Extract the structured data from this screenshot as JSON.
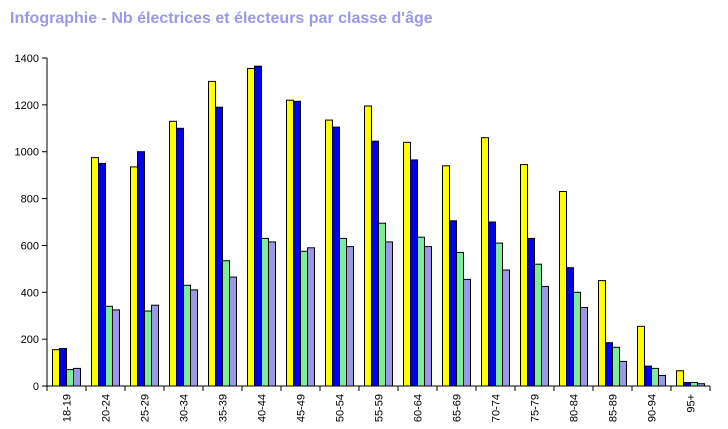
{
  "chart_data": {
    "type": "bar",
    "title": "Infographie - Nb électrices et électeurs par classe d'âge",
    "xlabel": "",
    "ylabel": "",
    "ylim": [
      0,
      1400
    ],
    "yticks": [
      0,
      200,
      400,
      600,
      800,
      1000,
      1200,
      1400
    ],
    "grid": false,
    "legend": "none",
    "categories": [
      "18-19",
      "20-24",
      "25-29",
      "30-34",
      "35-39",
      "40-44",
      "45-49",
      "50-54",
      "55-59",
      "60-64",
      "65-69",
      "70-74",
      "75-79",
      "80-84",
      "85-89",
      "90-94",
      "95+"
    ],
    "series": [
      {
        "color": "#ffff00",
        "values": [
          155,
          975,
          935,
          1130,
          1300,
          1355,
          1220,
          1135,
          1195,
          1040,
          940,
          1060,
          945,
          830,
          450,
          255,
          65
        ]
      },
      {
        "color": "#0000e6",
        "values": [
          160,
          950,
          1000,
          1100,
          1190,
          1365,
          1215,
          1105,
          1045,
          965,
          705,
          700,
          630,
          505,
          185,
          85,
          15
        ]
      },
      {
        "color": "#80ee99",
        "values": [
          70,
          340,
          320,
          430,
          535,
          630,
          575,
          630,
          695,
          635,
          570,
          610,
          520,
          400,
          165,
          75,
          15
        ]
      },
      {
        "color": "#9999e6",
        "values": [
          75,
          325,
          345,
          410,
          465,
          615,
          590,
          595,
          615,
          595,
          455,
          495,
          425,
          335,
          105,
          45,
          10
        ]
      }
    ]
  }
}
